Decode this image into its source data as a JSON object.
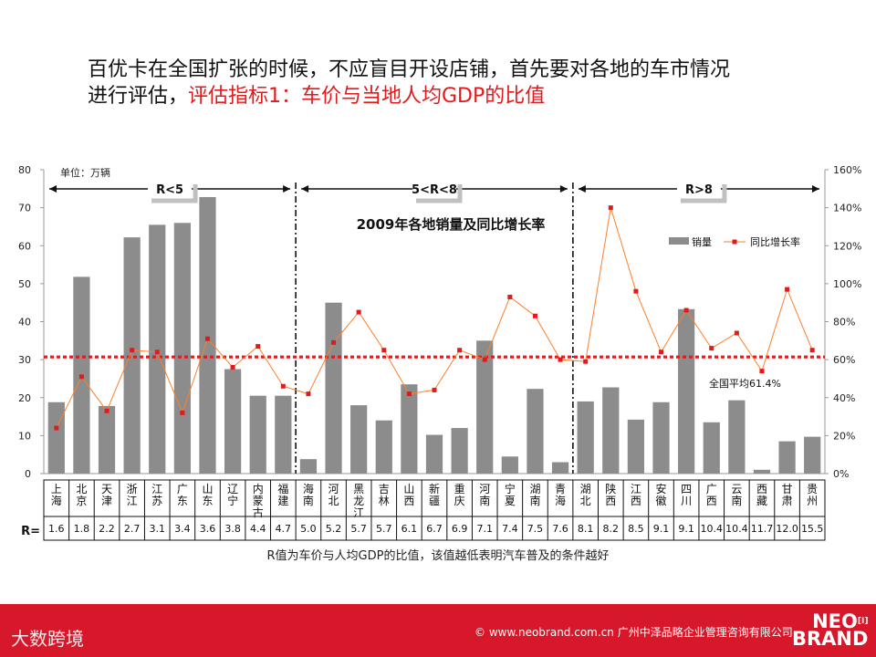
{
  "title": {
    "line1": "百优卡在全国扩张的时候，不应盲目开设店铺，首先要对各地的车市情况",
    "line2_prefix": "进行评估，",
    "line2_highlight": "评估指标1：车价与当地人均GDP的比值"
  },
  "chart_data": {
    "type": "bar",
    "title": "2009年各地销量及同比增长率",
    "unit_label": "单位：万辆",
    "categories": [
      "上海",
      "北京",
      "天津",
      "浙江",
      "江苏",
      "广东",
      "山东",
      "辽宁",
      "内蒙古",
      "福建",
      "海南",
      "河北",
      "黑龙江",
      "吉林",
      "山西",
      "新疆",
      "重庆",
      "河南",
      "宁夏",
      "湖南",
      "青海",
      "湖北",
      "陕西",
      "江西",
      "安徽",
      "四川",
      "广西",
      "云南",
      "西藏",
      "甘肃",
      "贵州"
    ],
    "r_label": "R=",
    "r_values": [
      "1.6",
      "1.8",
      "2.2",
      "2.7",
      "3.1",
      "3.4",
      "3.6",
      "3.8",
      "4.4",
      "4.7",
      "5.0",
      "5.2",
      "5.7",
      "5.7",
      "6.1",
      "6.7",
      "6.9",
      "7.1",
      "7.4",
      "7.5",
      "7.6",
      "8.1",
      "8.2",
      "8.5",
      "9.1",
      "9.1",
      "10.4",
      "10.4",
      "11.7",
      "12.0",
      "15.5"
    ],
    "series": [
      {
        "name": "销量",
        "kind": "bar",
        "color": "#8c8c8c",
        "values": [
          18.8,
          51.8,
          17.8,
          62.2,
          65.5,
          66.0,
          72.8,
          27.5,
          20.5,
          20.5,
          3.8,
          45.0,
          18.0,
          14.0,
          23.5,
          10.2,
          12.0,
          35.0,
          4.5,
          22.3,
          3.0,
          19.0,
          22.7,
          14.2,
          18.8,
          43.3,
          13.5,
          19.3,
          1.0,
          8.5,
          9.7
        ]
      },
      {
        "name": "同比增长率",
        "kind": "line",
        "axis": "right",
        "color": "#ff7f27",
        "marker_color": "#e3191c",
        "values": [
          24,
          51,
          33,
          65,
          64,
          32,
          71,
          56,
          67,
          46,
          42,
          69,
          85,
          65,
          42,
          44,
          65,
          60,
          93,
          83,
          60,
          59,
          140,
          96,
          64,
          86,
          66,
          74,
          54,
          97,
          65
        ]
      }
    ],
    "y_left": {
      "min": 0,
      "max": 80,
      "ticks": [
        "0",
        "10",
        "20",
        "30",
        "40",
        "50",
        "60",
        "70",
        "80"
      ]
    },
    "y_right": {
      "min": 0,
      "max": 160,
      "ticks": [
        "0%",
        "20%",
        "40%",
        "60%",
        "80%",
        "100%",
        "120%",
        "140%",
        "160%"
      ]
    },
    "avg_line": {
      "value": 61.4,
      "label": "全国平均61.4%",
      "color": "#e3191c"
    },
    "groups": [
      {
        "label": "R<5",
        "from": 0,
        "to": 9
      },
      {
        "label": "5<R<8",
        "from": 10,
        "to": 20
      },
      {
        "label": "R>8",
        "from": 21,
        "to": 30
      }
    ],
    "caption": "R值为车价与人均GDP的比值，该值越低表明汽车普及的条件越好"
  },
  "footer": {
    "brand_left": "大数跨境",
    "url": "© www.neobrand.com.cn  广州中泽品略企业管理咨询有限公司",
    "brand_right_1": "NEO",
    "brand_right_2": "BRAND",
    "brand_right_sup": "[I]"
  },
  "colors": {
    "accent_red": "#e3191c",
    "footer_red": "#d7182a",
    "bar_gray": "#8c8c8c",
    "line_orange": "#ff7f27"
  }
}
